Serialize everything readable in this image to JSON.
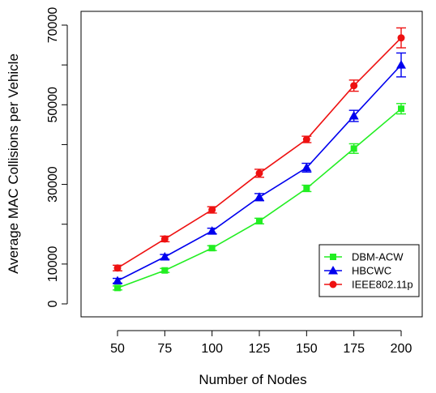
{
  "chart_data": {
    "type": "line",
    "xlabel": "Number of Nodes",
    "ylabel": "Average MAC Collisions per Vehicle",
    "x": [
      50,
      75,
      100,
      125,
      150,
      175,
      200
    ],
    "x_tick_labels": [
      "50",
      "75",
      "100",
      "125",
      "150",
      "175",
      "200"
    ],
    "y_ticks": [
      0,
      10000,
      30000,
      50000,
      70000
    ],
    "y_tick_labels": [
      "0",
      "10000",
      "30000",
      "50000",
      "70000"
    ],
    "ylim": [
      -2000,
      74000
    ],
    "grid": false,
    "legend_position": "bottom-right",
    "series": [
      {
        "name": "DBM-ACW",
        "color": "#22ee22",
        "marker": "square",
        "values": [
          4000,
          8400,
          14000,
          20800,
          29000,
          39000,
          49000
        ],
        "errors": [
          500,
          500,
          600,
          700,
          800,
          1200,
          1300
        ]
      },
      {
        "name": "HBCWC",
        "color": "#0000ee",
        "marker": "triangle",
        "values": [
          5800,
          11800,
          18300,
          26800,
          34200,
          47200,
          60000
        ],
        "errors": [
          600,
          600,
          700,
          900,
          1100,
          1400,
          3000
        ]
      },
      {
        "name": "IEEE802.11p",
        "color": "#ee1111",
        "marker": "circle",
        "values": [
          9000,
          16300,
          23600,
          32800,
          41300,
          54800,
          66800
        ],
        "errors": [
          700,
          700,
          800,
          1000,
          800,
          1400,
          2500
        ]
      }
    ]
  }
}
